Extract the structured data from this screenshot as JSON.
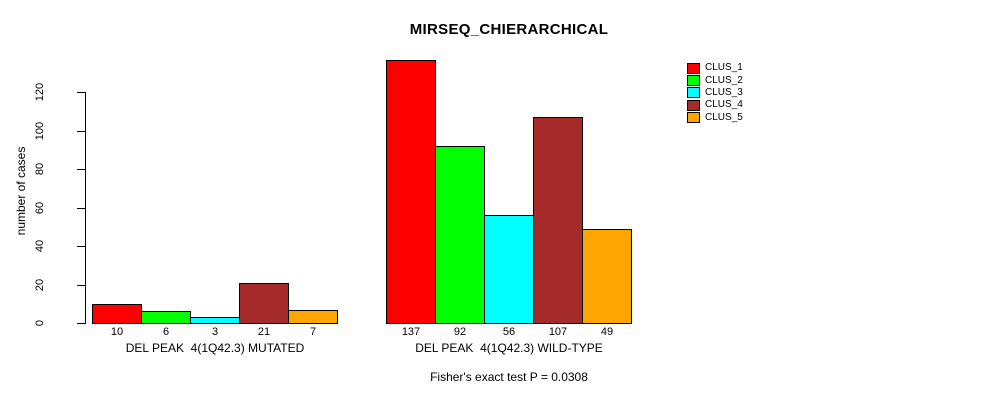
{
  "chart_data": {
    "type": "bar",
    "title": "MIRSEQ_CHIERARCHICAL",
    "ylabel": "number of cases",
    "xlabel": "",
    "annotation": "Fisher's exact test P = 0.0308",
    "series_names": [
      "CLUS_1",
      "CLUS_2",
      "CLUS_3",
      "CLUS_4",
      "CLUS_5"
    ],
    "colors": [
      "#FF0000",
      "#00FF00",
      "#00FFFF",
      "#A52A2A",
      "#FFA500"
    ],
    "groups": [
      {
        "label": "DEL PEAK  4(1Q42.3) MUTATED",
        "values": [
          10,
          6,
          3,
          21,
          7
        ]
      },
      {
        "label": "DEL PEAK  4(1Q42.3) WILD-TYPE",
        "values": [
          137,
          92,
          56,
          107,
          49
        ]
      }
    ],
    "bar_value_labels_shown": true,
    "yticks": [
      0,
      20,
      40,
      60,
      80,
      100,
      120
    ],
    "ylim": [
      0,
      137
    ],
    "grid": false,
    "legend_position": "top-right",
    "legend_border": false
  }
}
